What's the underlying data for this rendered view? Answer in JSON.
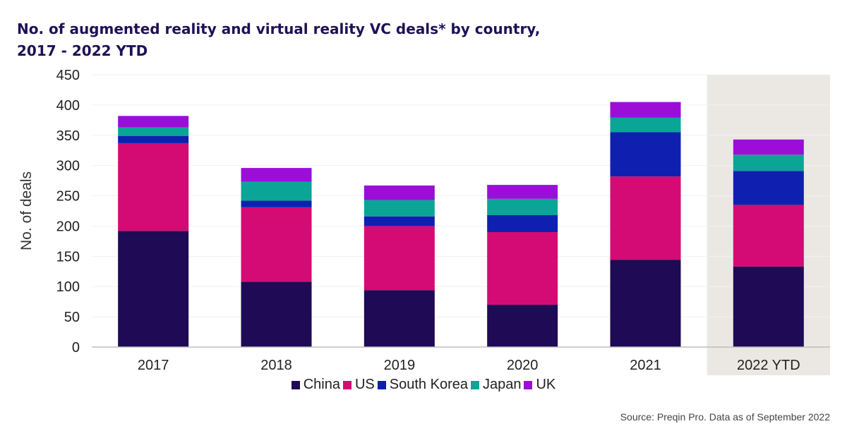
{
  "title_line1": "No. of augmented reality and virtual reality VC deals* by country,",
  "title_line2": "2017 - 2022 YTD",
  "source": "Source: Preqin Pro. Data as of September 2022",
  "chart_data": {
    "type": "bar",
    "stacked": true,
    "categories": [
      "2017",
      "2018",
      "2019",
      "2020",
      "2021",
      "2022 YTD"
    ],
    "highlighted_category": "2022 YTD",
    "ylabel": "No. of deals",
    "xlabel": "",
    "ylim": [
      0,
      450
    ],
    "yticks": [
      0,
      50,
      100,
      150,
      200,
      250,
      300,
      350,
      400,
      450
    ],
    "legend_position": "bottom",
    "series": [
      {
        "name": "China",
        "color": "#1e0a55",
        "values": [
          192,
          108,
          94,
          70,
          144,
          133
        ]
      },
      {
        "name": "US",
        "color": "#d40b74",
        "values": [
          145,
          123,
          106,
          120,
          138,
          102
        ]
      },
      {
        "name": "South Korea",
        "color": "#0f20b0",
        "values": [
          12,
          11,
          16,
          28,
          73,
          56
        ]
      },
      {
        "name": "Japan",
        "color": "#0ba597",
        "values": [
          14,
          31,
          27,
          27,
          24,
          27
        ]
      },
      {
        "name": "UK",
        "color": "#9c0ed8",
        "values": [
          19,
          23,
          24,
          23,
          26,
          25
        ]
      }
    ]
  }
}
